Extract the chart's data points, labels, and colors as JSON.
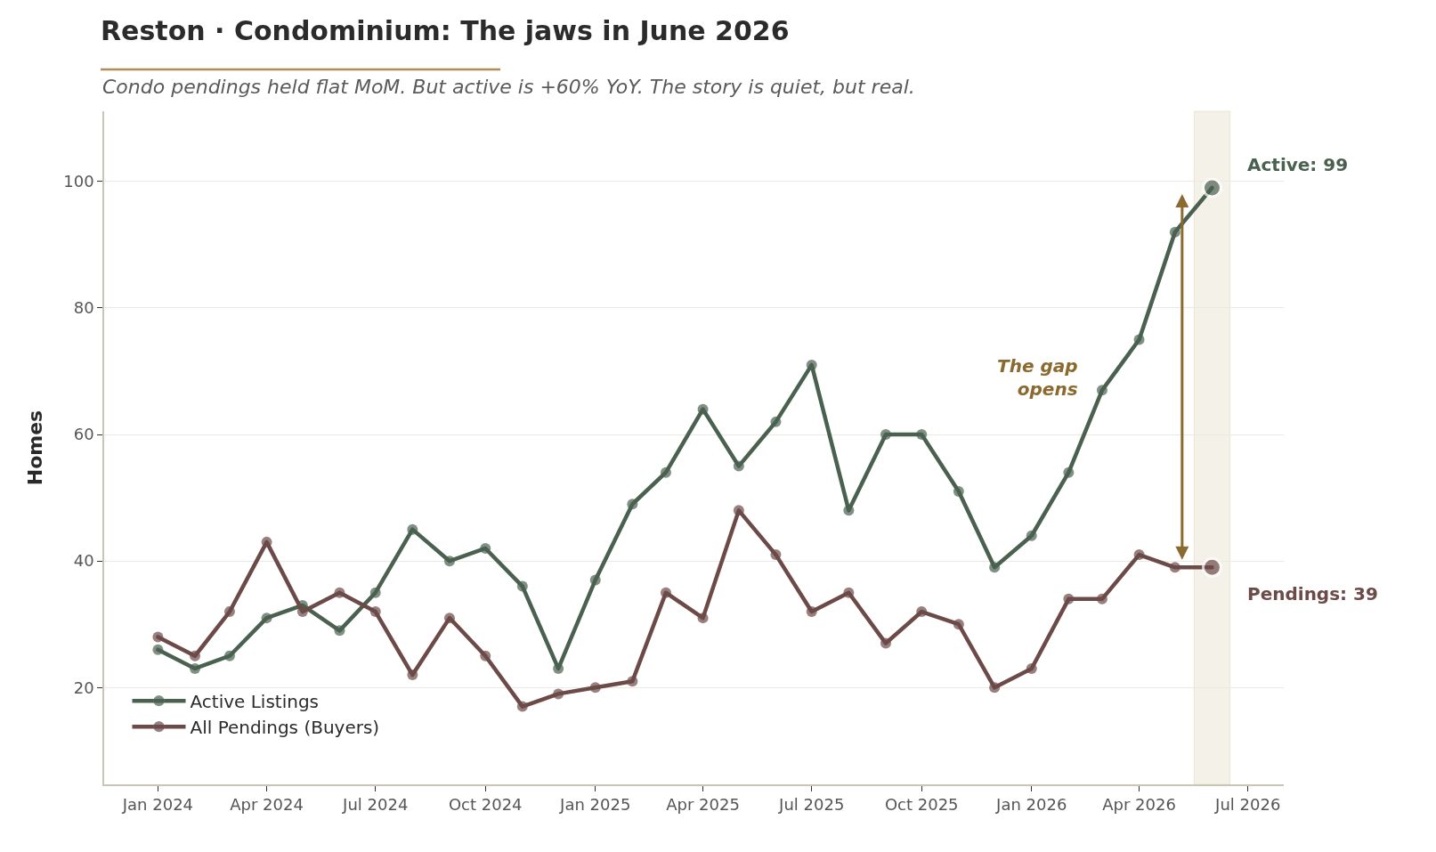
{
  "chart_data": {
    "type": "line",
    "title": "Reston · Condominium: The jaws in June 2026",
    "subtitle": "Condo pendings held flat MoM. But active is +60% YoY. The story is quiet, but real.",
    "ylabel": "Homes",
    "x": [
      "2024-01",
      "2024-02",
      "2024-03",
      "2024-04",
      "2024-05",
      "2024-06",
      "2024-07",
      "2024-08",
      "2024-09",
      "2024-10",
      "2024-11",
      "2024-12",
      "2025-01",
      "2025-02",
      "2025-03",
      "2025-04",
      "2025-05",
      "2025-06",
      "2025-07",
      "2025-08",
      "2025-09",
      "2025-10",
      "2025-11",
      "2025-12",
      "2026-01",
      "2026-02",
      "2026-03",
      "2026-04",
      "2026-05",
      "2026-06"
    ],
    "series": [
      {
        "name": "Active Listings",
        "color": "#4a6150",
        "values": [
          26,
          23,
          25,
          31,
          33,
          29,
          35,
          45,
          40,
          42,
          36,
          23,
          37,
          49,
          54,
          64,
          55,
          62,
          71,
          48,
          60,
          60,
          51,
          39,
          44,
          54,
          67,
          75,
          92,
          99
        ],
        "value_labels": [
          null,
          null,
          null,
          null,
          null,
          null,
          null,
          null,
          null,
          null,
          null,
          null,
          null,
          null,
          null,
          null,
          null,
          null,
          null,
          null,
          null,
          null,
          null,
          null,
          null,
          null,
          null,
          null,
          null,
          "Active: 99"
        ]
      },
      {
        "name": "All Pendings (Buyers)",
        "color": "#6b4a48",
        "values": [
          28,
          25,
          32,
          43,
          32,
          35,
          32,
          22,
          31,
          25,
          17,
          19,
          20,
          21,
          35,
          31,
          48,
          41,
          32,
          35,
          27,
          32,
          30,
          20,
          23,
          34,
          34,
          41,
          39,
          39
        ],
        "value_labels": [
          null,
          null,
          null,
          null,
          null,
          null,
          null,
          null,
          null,
          null,
          null,
          null,
          null,
          null,
          null,
          null,
          null,
          null,
          null,
          null,
          null,
          null,
          null,
          null,
          null,
          null,
          null,
          null,
          null,
          "Pendings: 39"
        ]
      }
    ],
    "xlim": [
      "2023-11-17",
      "2026-07-31"
    ],
    "ylim": [
      4.7,
      111.1
    ],
    "xticks": [
      {
        "value": "2024-01",
        "label": "Jan 2024"
      },
      {
        "value": "2024-04",
        "label": "Apr 2024"
      },
      {
        "value": "2024-07",
        "label": "Jul 2024"
      },
      {
        "value": "2024-10",
        "label": "Oct 2024"
      },
      {
        "value": "2025-01",
        "label": "Jan 2025"
      },
      {
        "value": "2025-04",
        "label": "Apr 2025"
      },
      {
        "value": "2025-07",
        "label": "Jul 2025"
      },
      {
        "value": "2025-10",
        "label": "Oct 2025"
      },
      {
        "value": "2026-01",
        "label": "Jan 2026"
      },
      {
        "value": "2026-04",
        "label": "Apr 2026"
      },
      {
        "value": "2026-07",
        "label": "Jul 2026"
      }
    ],
    "yticks": [
      20,
      40,
      60,
      80,
      100
    ],
    "grid": "y",
    "legend": "bottom left",
    "marker": "circle",
    "line_style": "solid",
    "bands": [
      {
        "axis": "x",
        "from": "2026-05-17",
        "to": "2026-06-16",
        "color": "#f4f1e8"
      }
    ],
    "annotations": [
      "The gap\nopens"
    ]
  }
}
